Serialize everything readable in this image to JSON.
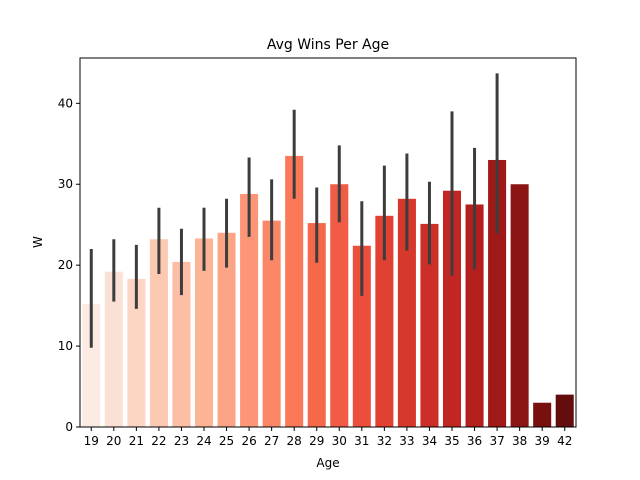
{
  "chart_data": {
    "type": "bar",
    "title": "Avg Wins Per Age",
    "xlabel": "Age",
    "ylabel": "W",
    "ylim": [
      0,
      45.6
    ],
    "yticks": [
      0,
      10,
      20,
      30,
      40
    ],
    "grid": false,
    "legend": "none",
    "palette": "Reds",
    "categories": [
      "19",
      "20",
      "21",
      "22",
      "23",
      "24",
      "25",
      "26",
      "27",
      "28",
      "29",
      "30",
      "31",
      "32",
      "33",
      "34",
      "35",
      "36",
      "37",
      "38",
      "39",
      "42"
    ],
    "values": [
      15.2,
      19.2,
      18.3,
      23.2,
      20.4,
      23.3,
      24.0,
      28.8,
      25.5,
      33.5,
      25.2,
      30.0,
      22.4,
      26.1,
      28.2,
      25.1,
      29.2,
      27.5,
      33.0,
      30.0,
      3.0,
      4.0
    ],
    "error_low": [
      9.8,
      15.5,
      14.6,
      18.9,
      16.3,
      19.3,
      19.7,
      23.5,
      20.6,
      28.2,
      20.3,
      25.3,
      16.2,
      20.6,
      21.8,
      20.1,
      18.7,
      19.5,
      23.9,
      null,
      null,
      null
    ],
    "error_high": [
      22.0,
      23.2,
      22.5,
      27.1,
      24.5,
      27.1,
      28.2,
      33.3,
      30.6,
      39.2,
      29.6,
      34.8,
      27.9,
      32.3,
      33.8,
      30.3,
      39.0,
      34.5,
      43.7,
      null,
      null,
      null
    ],
    "colors": [
      "#fcebe3",
      "#fbe0d5",
      "#fcd5c3",
      "#fcc9b3",
      "#fcbea5",
      "#fcb396",
      "#fca486",
      "#fc9677",
      "#fb8769",
      "#fb7859",
      "#f5694a",
      "#f05c45",
      "#eb4e3b",
      "#e14132",
      "#d6382b",
      "#cc2e28",
      "#c22623",
      "#b41e1d",
      "#9f1919",
      "#8b1414",
      "#77110e",
      "#650c0c"
    ]
  }
}
